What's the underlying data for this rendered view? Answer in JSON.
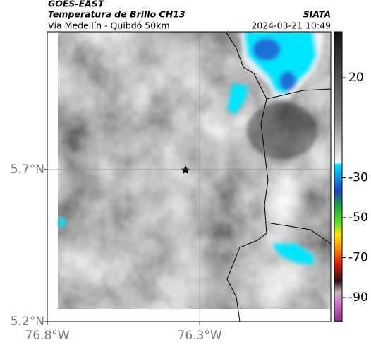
{
  "header": {
    "title": "GOES-EAST",
    "subtitle": "Temperatura de Brillo CH13",
    "source": "SIATA",
    "route": "Vía Medellín - Quibdó 50km",
    "timestamp": "2024-03-21 10:49"
  },
  "map": {
    "xlim": [
      -76.8,
      -75.87
    ],
    "ylim": [
      5.2,
      6.153
    ],
    "xticks": [
      {
        "value": -76.8,
        "label": "76.8°W"
      },
      {
        "value": -76.3,
        "label": "76.3°W"
      }
    ],
    "yticks": [
      {
        "value": 5.7,
        "label": "5.7°N"
      },
      {
        "value": 5.2,
        "label": "5.2°N"
      }
    ]
  },
  "colorbar": {
    "lim": [
      -102,
      43
    ],
    "ticks": [
      20,
      -30,
      -50,
      -70,
      -90
    ]
  }
}
